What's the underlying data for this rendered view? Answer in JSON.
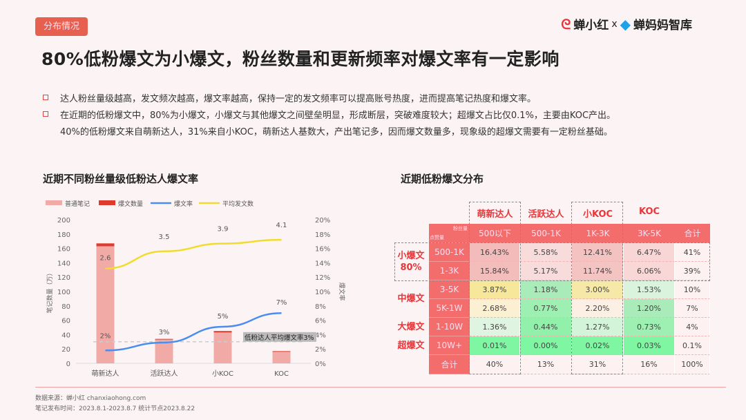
{
  "tag": "分布情况",
  "logo": {
    "brand1": "蝉小红",
    "sep": "x",
    "brand2": "蝉妈妈智库"
  },
  "title": "80%低粉爆文为小爆文，粉丝数量和更新频率对爆文率有一定影响",
  "bullets": [
    "达人粉丝量级越高，发文频次越高，爆文率越高，保持一定的发文频率可以提高账号热度，进而提高笔记热度和爆文率。",
    "在近期的低粉爆文中，80%为小爆文，小爆文与其他爆文之间壁垒明显，形成断层，突破难度较大；超爆文占比仅0.1%，主要由KOC产出。",
    "40%的低粉爆文来自萌新达人，31%来自小KOC，萌新达人基数大，产出笔记多，因而爆文数量多，现象级的超爆文需要有一定粉丝基础。"
  ],
  "footer": {
    "source": "数据来源：蝉小红 chanxiaohong.com",
    "period": "笔记发布时间：2023.8.1-2023.8.7 统计节点2023.8.22"
  },
  "chart_data": [
    {
      "type": "bar+line",
      "title": "近期不同粉丝量级低粉达人爆文率",
      "categories": [
        "萌新达人",
        "活跃达人",
        "小KOC",
        "KOC"
      ],
      "legend": [
        "普通笔记",
        "爆文数量",
        "爆文率",
        "平均发文数"
      ],
      "legend_placement": "top-left",
      "ylabel": "笔记数量（万）",
      "y2label": "爆文率",
      "ylim": [
        0,
        200
      ],
      "yticks": [
        "0",
        "20",
        "40",
        "60",
        "80",
        "100",
        "120",
        "140",
        "160",
        "180",
        "200"
      ],
      "y2lim": [
        0,
        20
      ],
      "y2ticks": [
        "0%",
        "2%",
        "4%",
        "6%",
        "8%",
        "10%",
        "12%",
        "14%",
        "16%",
        "18%",
        "20%"
      ],
      "series": [
        {
          "name": "普通笔记",
          "type": "bar",
          "values": [
            163,
            33,
            43,
            16
          ],
          "color": "#f2aaa6"
        },
        {
          "name": "爆文数量",
          "type": "bar",
          "values": [
            4,
            1,
            2,
            1
          ],
          "color": "#e03a2e"
        },
        {
          "name": "爆文率",
          "type": "line",
          "values": [
            1.8,
            2.9,
            5.1,
            7.0
          ],
          "labels": [
            "2%",
            "3%",
            "5%",
            "7%"
          ],
          "color": "#4a8df0"
        },
        {
          "name": "平均发文数",
          "type": "line",
          "values": [
            2.6,
            3.5,
            3.9,
            4.1
          ],
          "labels": [
            "2.6",
            "3.5",
            "3.9",
            "4.1"
          ],
          "color": "#f1dc2e"
        }
      ],
      "reference_line": {
        "value": 3,
        "label": "低粉达人平均爆文率3%"
      }
    },
    {
      "type": "table",
      "title": "近期低粉爆文分布",
      "top_headers": [
        "萌新达人",
        "活跃达人",
        "小KOC",
        "KOC"
      ],
      "corner": {
        "col": "粉丝量",
        "row": "点赞量"
      },
      "columns": [
        "500以下",
        "500-1K",
        "1K-3K",
        "3K-5K",
        "合计"
      ],
      "groups": [
        {
          "label": "小爆文\n80%",
          "rows": 2
        },
        {
          "label": "中爆文",
          "rows": 2
        },
        {
          "label": "大爆文",
          "rows": 1
        },
        {
          "label": "超爆文",
          "rows": 1
        }
      ],
      "rows": [
        {
          "label": "500-1K",
          "values": [
            "16.43%",
            "5.58%",
            "12.41%",
            "6.47%",
            "41%"
          ],
          "colors": [
            "#f3bcbb",
            "#f8dcdb",
            "#f4c2c1",
            "#f8d6d5",
            "#fdf1f1"
          ]
        },
        {
          "label": "1-3K",
          "values": [
            "15.84%",
            "5.17%",
            "11.74%",
            "6.06%",
            "39%"
          ],
          "colors": [
            "#f3bdbc",
            "#f8dcdb",
            "#f4c4c3",
            "#f8d7d6",
            "#fdf1f1"
          ]
        },
        {
          "label": "3-5K",
          "values": [
            "3.87%",
            "1.18%",
            "3.00%",
            "1.53%",
            "10%"
          ],
          "colors": [
            "#f6e79a",
            "#a9ecb9",
            "#f6e8a6",
            "#d9f3dd",
            "#fdf1f1"
          ]
        },
        {
          "label": "5K-1W",
          "values": [
            "2.68%",
            "0.77%",
            "2.20%",
            "1.20%",
            "7%"
          ],
          "colors": [
            "#fbf0d2",
            "#9eefb2",
            "#fcefe3",
            "#a9ecb9",
            "#fdf1f1"
          ]
        },
        {
          "label": "1-10W",
          "values": [
            "1.36%",
            "0.44%",
            "1.27%",
            "0.73%",
            "4%"
          ],
          "colors": [
            "#e0f5e1",
            "#91f0a9",
            "#d3f4d9",
            "#9eefb2",
            "#fdf1f1"
          ]
        },
        {
          "label": "10W+",
          "values": [
            "0.01%",
            "0.00%",
            "0.02%",
            "0.03%",
            "0.1%"
          ],
          "colors": [
            "#7ef6a2",
            "#7ef6a2",
            "#7ef6a2",
            "#7ef6a2",
            "#fdf1f1"
          ]
        },
        {
          "label": "合计",
          "values": [
            "40%",
            "13%",
            "31%",
            "16%",
            "100%"
          ],
          "colors": [
            "#fdf1f1",
            "#fdf1f1",
            "#fdf1f1",
            "#fdf1f1",
            "#fdf1f1"
          ]
        }
      ]
    }
  ]
}
